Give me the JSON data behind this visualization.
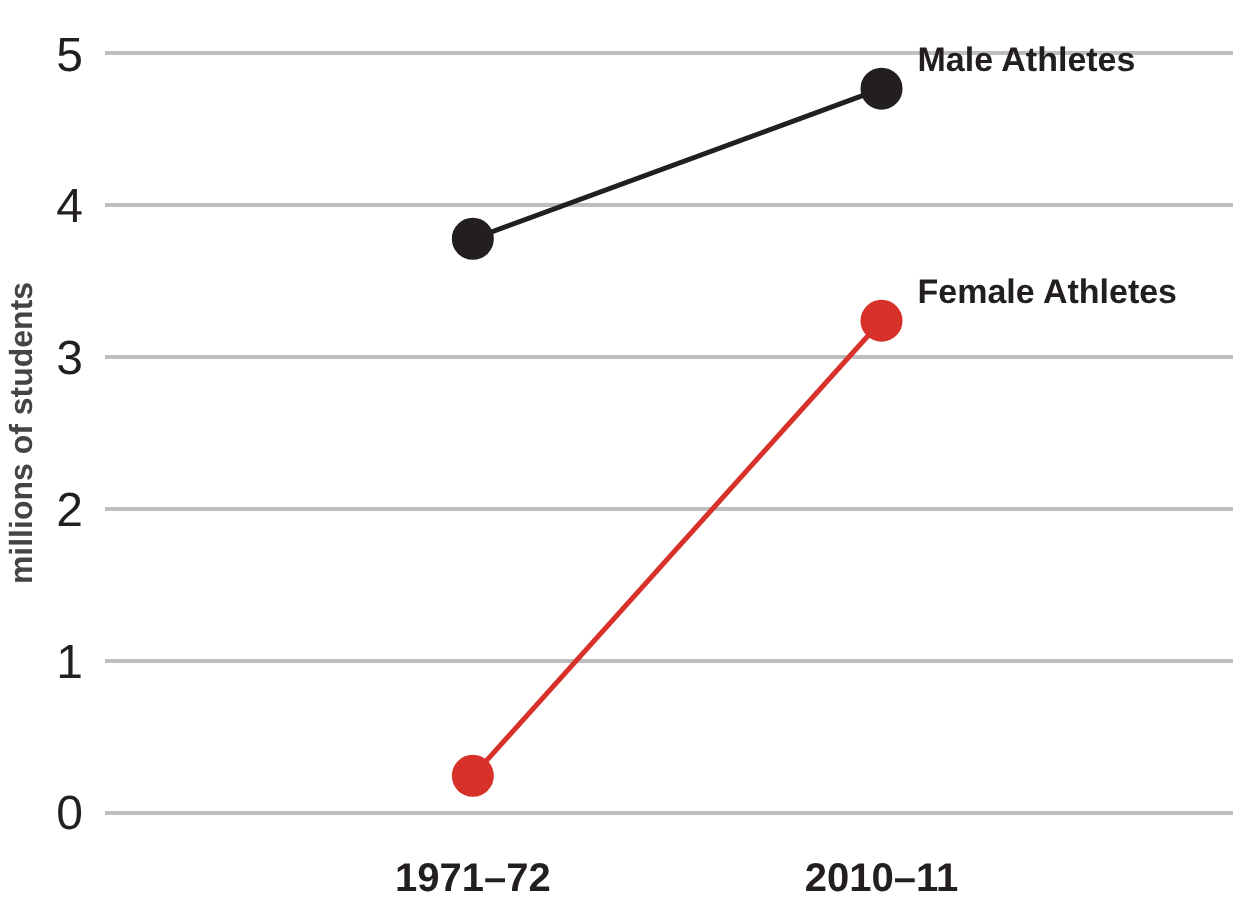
{
  "chart_data": {
    "type": "line",
    "ylabel": "millions of students",
    "categories": [
      "1971–72",
      "2010–11"
    ],
    "series": [
      {
        "name": "Male Athletes",
        "color": "#231f20",
        "values": [
          3.78,
          4.77
        ]
      },
      {
        "name": "Female Athletes",
        "color": "#d7312a",
        "values": [
          0.24,
          3.24
        ]
      }
    ],
    "ylim": [
      0,
      5
    ],
    "yticks": [
      0,
      1,
      2,
      3,
      4,
      5
    ],
    "grid": "y",
    "marker": "circle",
    "line_style": "solid"
  }
}
